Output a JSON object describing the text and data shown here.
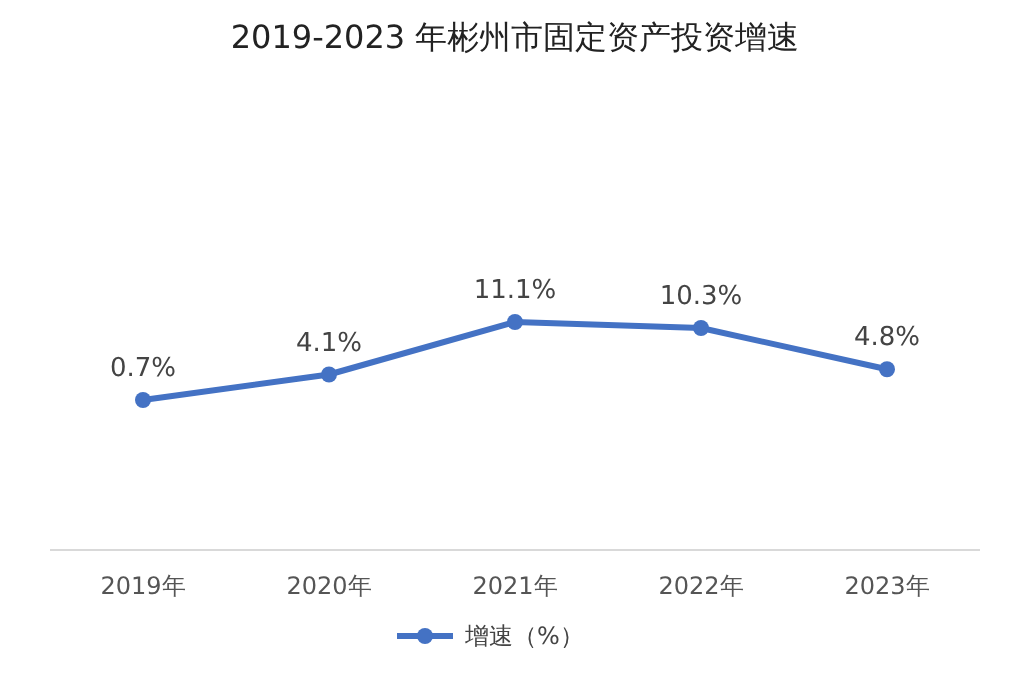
{
  "chart_data": {
    "type": "line",
    "title": "2019-2023 年彬州市固定资产投资增速",
    "categories": [
      "2019年",
      "2020年",
      "2021年",
      "2022年",
      "2023年"
    ],
    "series": [
      {
        "name": "增速（%）",
        "color": "#4472c4",
        "values": [
          0.7,
          4.1,
          11.1,
          10.3,
          4.8
        ],
        "value_labels": [
          "0.7%",
          "4.1%",
          "11.1%",
          "10.3%",
          "4.8%"
        ]
      }
    ],
    "marker": "circle",
    "legend": "bottom"
  }
}
